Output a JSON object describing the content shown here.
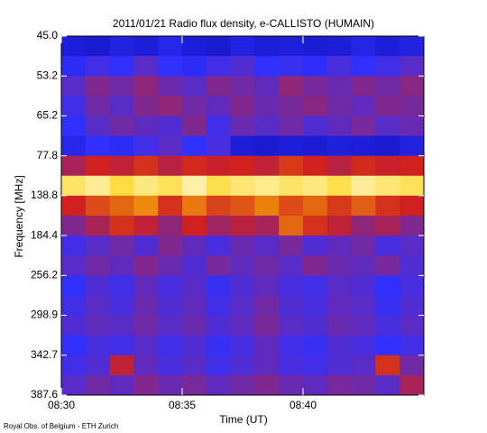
{
  "chart_data": {
    "type": "heatmap",
    "title": "2011/01/21  Radio flux density, e-CALLISTO (HUMAIN)",
    "x_label": "Time (UT)",
    "y_label": "Frequency [MHz]",
    "credit": "Royal Obs. of Belgium - ETH Zurich",
    "xlim": [
      0,
      15
    ],
    "xticks": [
      {
        "value": 0,
        "label": "08:30"
      },
      {
        "value": 5,
        "label": "08:35"
      },
      {
        "value": 10,
        "label": "08:40"
      }
    ],
    "ylim": [
      0,
      9
    ],
    "yticks": [
      {
        "value": 0,
        "label": "45.0"
      },
      {
        "value": 1,
        "label": "53.2"
      },
      {
        "value": 2,
        "label": "65.2"
      },
      {
        "value": 3,
        "label": "77.8"
      },
      {
        "value": 4,
        "label": "138.8"
      },
      {
        "value": 5,
        "label": "184.4"
      },
      {
        "value": 6,
        "label": "256.2"
      },
      {
        "value": 7,
        "label": "298.9"
      },
      {
        "value": 8,
        "label": "342.7"
      },
      {
        "value": 9,
        "label": "387.6"
      }
    ],
    "zlim": [
      0,
      100
    ],
    "colormap": [
      "#000030",
      "#0c0cb0",
      "#3030ff",
      "#d02020",
      "#ffd000",
      "#ffffff"
    ],
    "values": [
      [
        30,
        28,
        32,
        30,
        35,
        30,
        28,
        33,
        30,
        31,
        29,
        30,
        34,
        30,
        32
      ],
      [
        38,
        42,
        40,
        45,
        40,
        38,
        42,
        44,
        40,
        41,
        39,
        43,
        40,
        42,
        45
      ],
      [
        45,
        50,
        48,
        52,
        47,
        45,
        50,
        48,
        46,
        52,
        49,
        47,
        50,
        48,
        51
      ],
      [
        42,
        48,
        45,
        50,
        52,
        48,
        46,
        50,
        47,
        49,
        51,
        48,
        46,
        50,
        49
      ],
      [
        40,
        45,
        48,
        46,
        44,
        50,
        42,
        47,
        45,
        48,
        44,
        46,
        49,
        45,
        47
      ],
      [
        35,
        40,
        38,
        42,
        45,
        40,
        43,
        30,
        28,
        30,
        29,
        31,
        30,
        28,
        32
      ],
      [
        55,
        60,
        58,
        62,
        57,
        61,
        59,
        60,
        58,
        63,
        60,
        57,
        61,
        59,
        60
      ],
      [
        88,
        92,
        85,
        90,
        87,
        93,
        86,
        89,
        91,
        88,
        90,
        86,
        92,
        89,
        87
      ],
      [
        60,
        65,
        68,
        72,
        62,
        70,
        64,
        66,
        71,
        65,
        68,
        63,
        67,
        62,
        60
      ],
      [
        50,
        55,
        62,
        58,
        52,
        60,
        54,
        57,
        55,
        68,
        62,
        58,
        52,
        55,
        50
      ],
      [
        42,
        45,
        48,
        44,
        50,
        46,
        43,
        47,
        45,
        49,
        44,
        46,
        48,
        43,
        45
      ],
      [
        45,
        48,
        46,
        50,
        47,
        44,
        49,
        46,
        48,
        45,
        50,
        47,
        46,
        49,
        44
      ],
      [
        40,
        44,
        42,
        46,
        43,
        45,
        41,
        44,
        46,
        43,
        42,
        45,
        44,
        40,
        43
      ],
      [
        42,
        45,
        43,
        47,
        44,
        46,
        42,
        45,
        48,
        44,
        43,
        46,
        45,
        41,
        44
      ],
      [
        44,
        46,
        45,
        48,
        45,
        47,
        44,
        46,
        49,
        45,
        44,
        47,
        46,
        43,
        45
      ],
      [
        40,
        43,
        42,
        45,
        42,
        44,
        41,
        43,
        46,
        42,
        41,
        44,
        43,
        40,
        42
      ],
      [
        42,
        44,
        58,
        46,
        43,
        45,
        42,
        44,
        46,
        43,
        42,
        44,
        45,
        62,
        48
      ],
      [
        45,
        48,
        46,
        50,
        47,
        49,
        46,
        48,
        50,
        47,
        46,
        49,
        48,
        45,
        55
      ]
    ]
  }
}
